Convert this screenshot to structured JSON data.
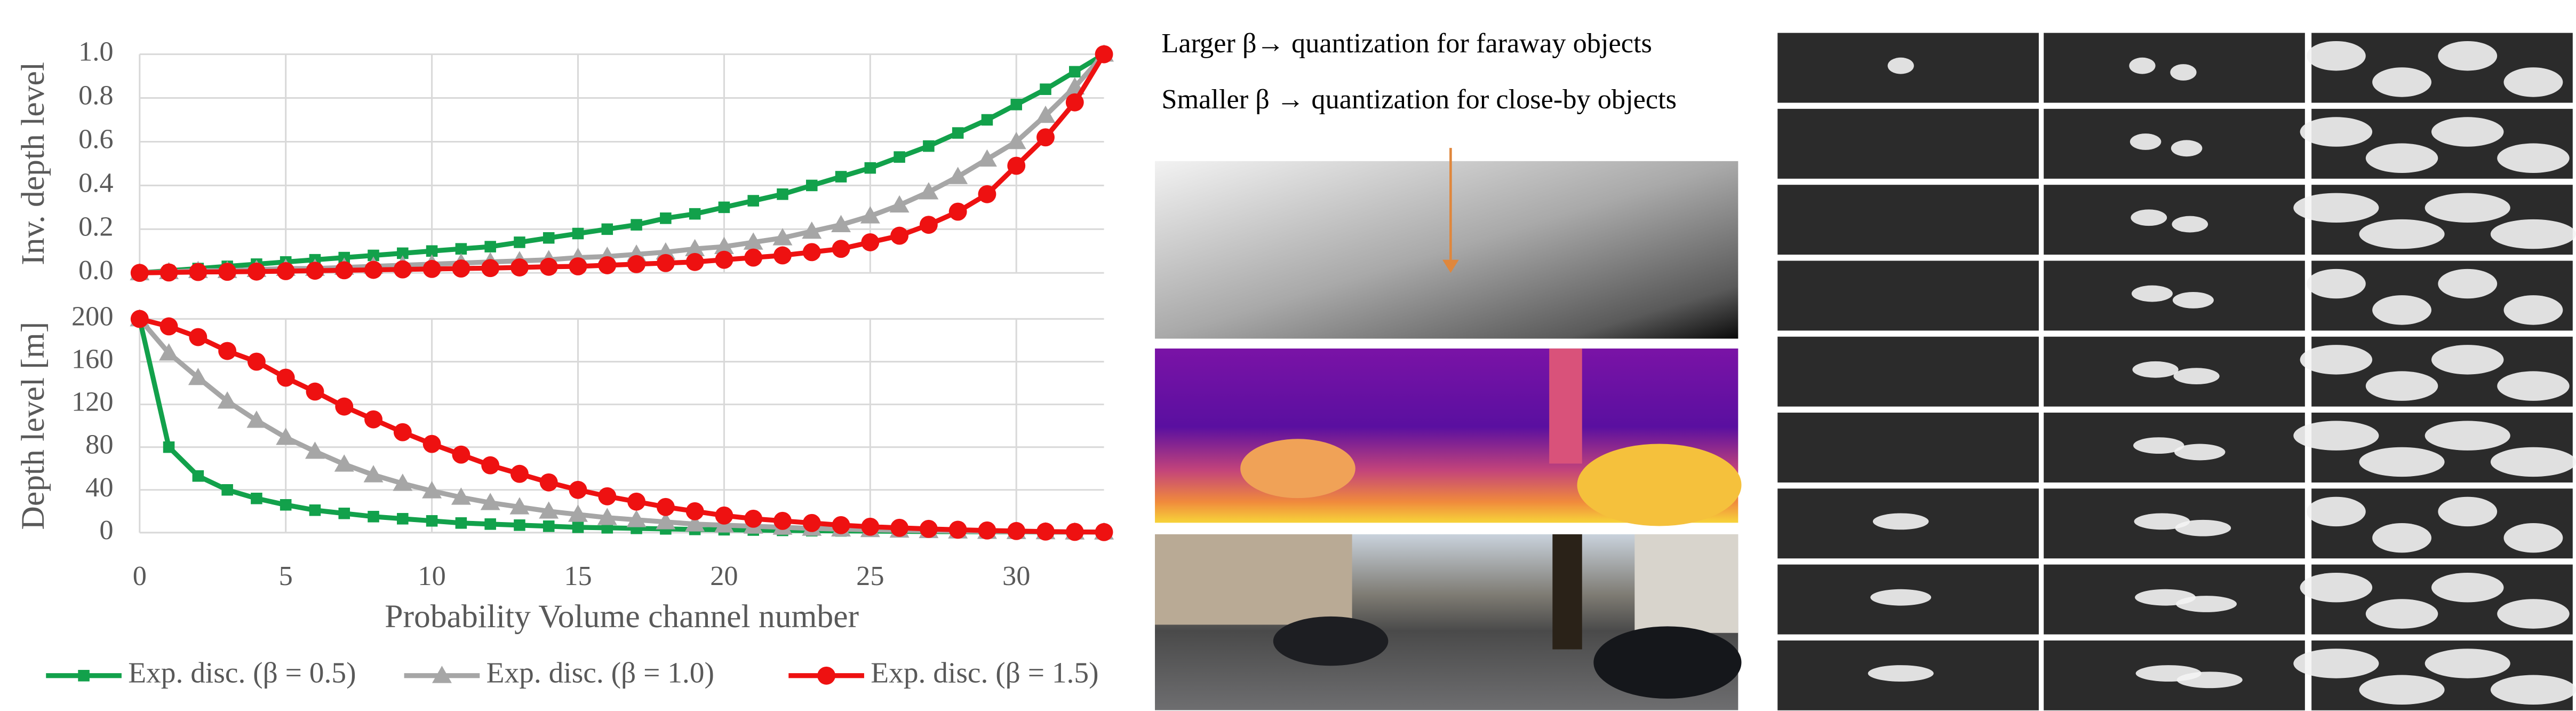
{
  "figure_text": [
    "Larger β→ quantization for faraway objects",
    "Smaller β → quantization for close-by objects"
  ],
  "chart_data": [
    {
      "type": "line",
      "ylabel": "Inv. depth level",
      "grid": true,
      "xlim": [
        0,
        33
      ],
      "ylim": [
        0,
        1
      ],
      "yticks": [
        {
          "value": 0,
          "label": "0.0"
        },
        0.2,
        0.4,
        0.6,
        0.8,
        {
          "value": 1,
          "label": "1.0"
        }
      ],
      "x": [
        0,
        1,
        2,
        3,
        4,
        5,
        6,
        7,
        8,
        9,
        10,
        11,
        12,
        13,
        14,
        15,
        16,
        17,
        18,
        19,
        20,
        21,
        22,
        23,
        24,
        25,
        26,
        27,
        28,
        29,
        30,
        31,
        32,
        33
      ],
      "series": [
        {
          "name": "Exp. disc. (β = 0.5)",
          "color": "#12a14b",
          "marker": "square",
          "values": [
            0,
            0.01,
            0.02,
            0.03,
            0.04,
            0.05,
            0.06,
            0.07,
            0.08,
            0.09,
            0.1,
            0.11,
            0.12,
            0.14,
            0.16,
            0.18,
            0.2,
            0.22,
            0.25,
            0.27,
            0.3,
            0.33,
            0.36,
            0.4,
            0.44,
            0.48,
            0.53,
            0.58,
            0.64,
            0.7,
            0.77,
            0.84,
            0.92,
            1.0
          ]
        },
        {
          "name": "Exp. disc. (β = 1.0)",
          "color": "#a6a6a6",
          "marker": "triangle",
          "values": [
            0,
            0.005,
            0.01,
            0.01,
            0.015,
            0.02,
            0.02,
            0.025,
            0.03,
            0.035,
            0.04,
            0.045,
            0.05,
            0.055,
            0.06,
            0.07,
            0.075,
            0.085,
            0.095,
            0.11,
            0.12,
            0.14,
            0.16,
            0.19,
            0.22,
            0.26,
            0.31,
            0.37,
            0.44,
            0.52,
            0.6,
            0.72,
            0.85,
            1.0
          ]
        },
        {
          "name": "Exp. disc. (β = 1.5)",
          "color": "#ee1111",
          "marker": "circle",
          "values": [
            0,
            0.002,
            0.004,
            0.005,
            0.006,
            0.008,
            0.01,
            0.012,
            0.014,
            0.016,
            0.018,
            0.02,
            0.022,
            0.025,
            0.028,
            0.03,
            0.035,
            0.04,
            0.045,
            0.05,
            0.06,
            0.07,
            0.08,
            0.095,
            0.11,
            0.14,
            0.17,
            0.22,
            0.28,
            0.36,
            0.49,
            0.62,
            0.78,
            1.0
          ]
        }
      ]
    },
    {
      "type": "line",
      "ylabel": "Depth level [m]",
      "xlabel": "Probability Volume channel number",
      "grid": true,
      "xlim": [
        0,
        33
      ],
      "ylim": [
        0,
        200
      ],
      "xticks": [
        0,
        5,
        10,
        15,
        20,
        25,
        30
      ],
      "yticks": [
        0,
        40,
        80,
        120,
        160,
        200
      ],
      "x": [
        0,
        1,
        2,
        3,
        4,
        5,
        6,
        7,
        8,
        9,
        10,
        11,
        12,
        13,
        14,
        15,
        16,
        17,
        18,
        19,
        20,
        21,
        22,
        23,
        24,
        25,
        26,
        27,
        28,
        29,
        30,
        31,
        32,
        33
      ],
      "series": [
        {
          "color": "#12a14b",
          "marker": "square",
          "values": [
            200,
            80,
            53,
            40,
            32,
            26,
            21,
            18,
            15,
            13,
            11,
            9,
            8,
            7,
            6,
            5,
            4.5,
            4,
            3.5,
            3,
            2.7,
            2.4,
            2.1,
            1.8,
            1.6,
            1.4,
            1.2,
            1,
            0.9,
            0.8,
            0.7,
            0.6,
            0.5,
            0.5
          ]
        },
        {
          "color": "#a6a6a6",
          "marker": "triangle",
          "values": [
            200,
            168,
            145,
            123,
            105,
            89,
            76,
            64,
            54,
            46,
            39,
            33,
            28,
            24,
            20,
            17,
            14,
            12,
            10,
            8,
            7,
            6,
            5,
            4,
            3.3,
            2.7,
            2.2,
            1.8,
            1.4,
            1.1,
            0.9,
            0.7,
            0.5,
            0.5
          ]
        },
        {
          "color": "#ee1111",
          "marker": "circle",
          "values": [
            200,
            193,
            183,
            170,
            160,
            145,
            132,
            118,
            106,
            94,
            83,
            73,
            63,
            55,
            47,
            40,
            34,
            29,
            24,
            20,
            16,
            13,
            11,
            9,
            7,
            5.5,
            4.5,
            3.5,
            2.7,
            2,
            1.5,
            1,
            0.7,
            0.5
          ]
        }
      ]
    }
  ]
}
